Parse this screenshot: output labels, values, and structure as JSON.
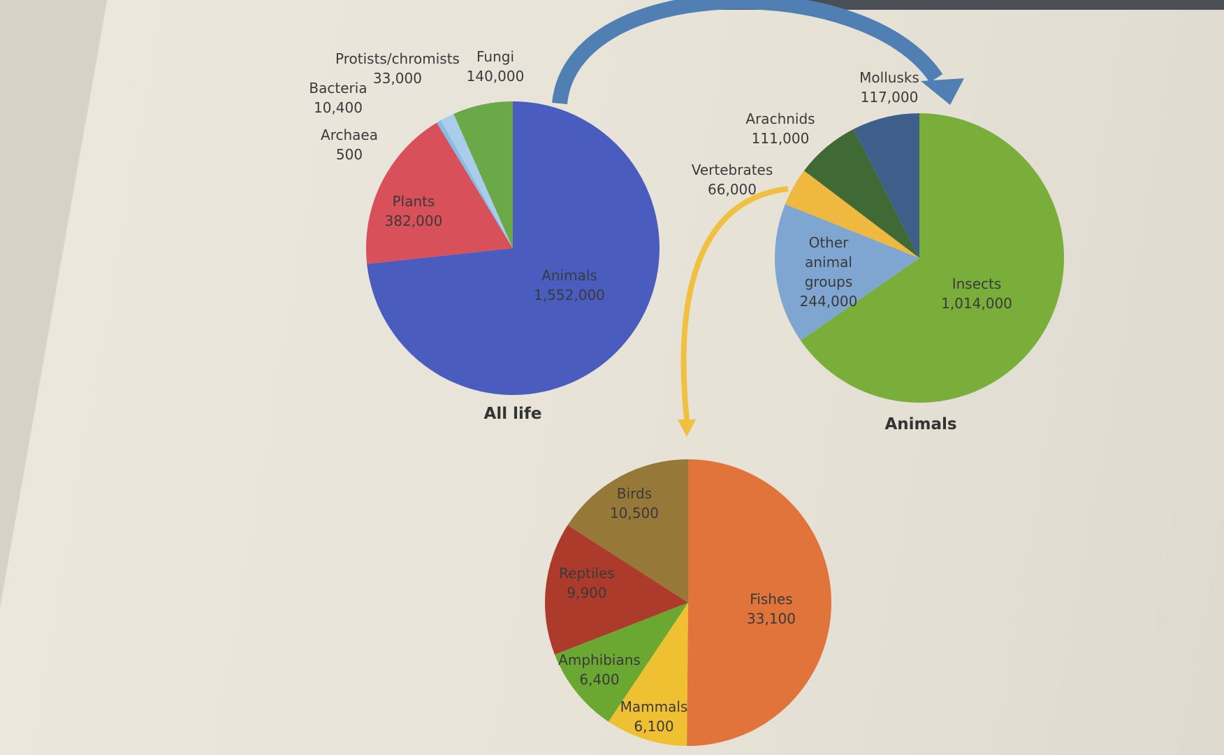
{
  "chart_data": [
    {
      "type": "pie",
      "title": "All life",
      "categories": [
        "Animals",
        "Plants",
        "Archaea",
        "Bacteria",
        "Protists/chromists",
        "Fungi"
      ],
      "values": [
        1552000,
        382000,
        500,
        10400,
        33000,
        140000
      ],
      "value_labels": [
        "1,552,000",
        "382,000",
        "500",
        "10,400",
        "33,000",
        "140,000"
      ],
      "colors": [
        "#4a5dbf",
        "#d8505a",
        "#5f9fd8",
        "#86bde6",
        "#a9cdea",
        "#6aa848"
      ]
    },
    {
      "type": "pie",
      "title": "Animals",
      "categories": [
        "Insects",
        "Other animal groups",
        "Vertebrates",
        "Arachnids",
        "Mollusks"
      ],
      "values": [
        1014000,
        244000,
        66000,
        111000,
        117000
      ],
      "value_labels": [
        "1,014,000",
        "244,000",
        "66,000",
        "111,000",
        "117,000"
      ],
      "colors": [
        "#7aae3a",
        "#7fa6d0",
        "#efb83f",
        "#3f6a36",
        "#3e5f8a"
      ]
    },
    {
      "type": "pie",
      "categories": [
        "Fishes",
        "Mammals",
        "Amphibians",
        "Reptiles",
        "Birds"
      ],
      "values": [
        33100,
        6100,
        6400,
        9900,
        10500
      ],
      "value_labels": [
        "33,100",
        "6,100",
        "6,400",
        "9,900",
        "10,500"
      ],
      "colors": [
        "#e0743a",
        "#eec032",
        "#6aa832",
        "#ad3b2c",
        "#967838"
      ]
    }
  ]
}
